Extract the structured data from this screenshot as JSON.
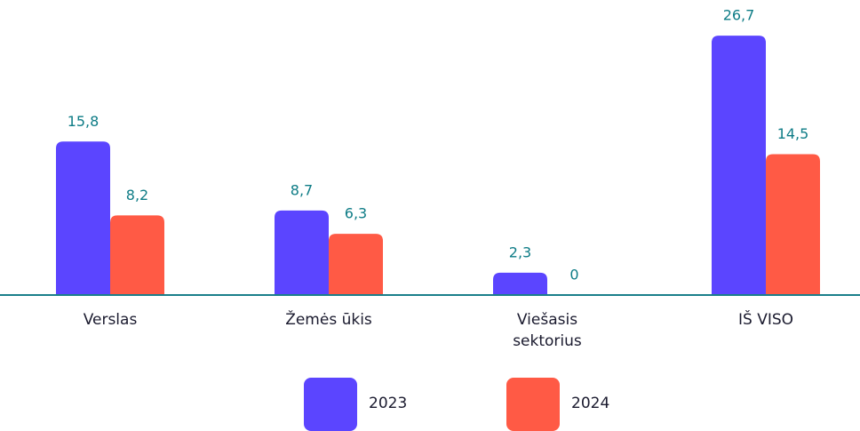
{
  "chart_data": {
    "type": "bar",
    "categories": [
      "Verslas",
      "Žemės ūkis",
      "Viešasis sektorius",
      "IŠ VISO"
    ],
    "series": [
      {
        "name": "2023",
        "color": "#5b45ff",
        "values": [
          15.8,
          8.7,
          2.3,
          26.7
        ],
        "value_labels": [
          "15,8",
          "8,7",
          "2,3",
          "26,7"
        ]
      },
      {
        "name": "2024",
        "color": "#ff5a45",
        "values": [
          8.2,
          6.3,
          0,
          14.5
        ],
        "value_labels": [
          "8,2",
          "6,3",
          "0",
          "14,5"
        ]
      }
    ],
    "ylim": [
      0,
      30
    ]
  }
}
